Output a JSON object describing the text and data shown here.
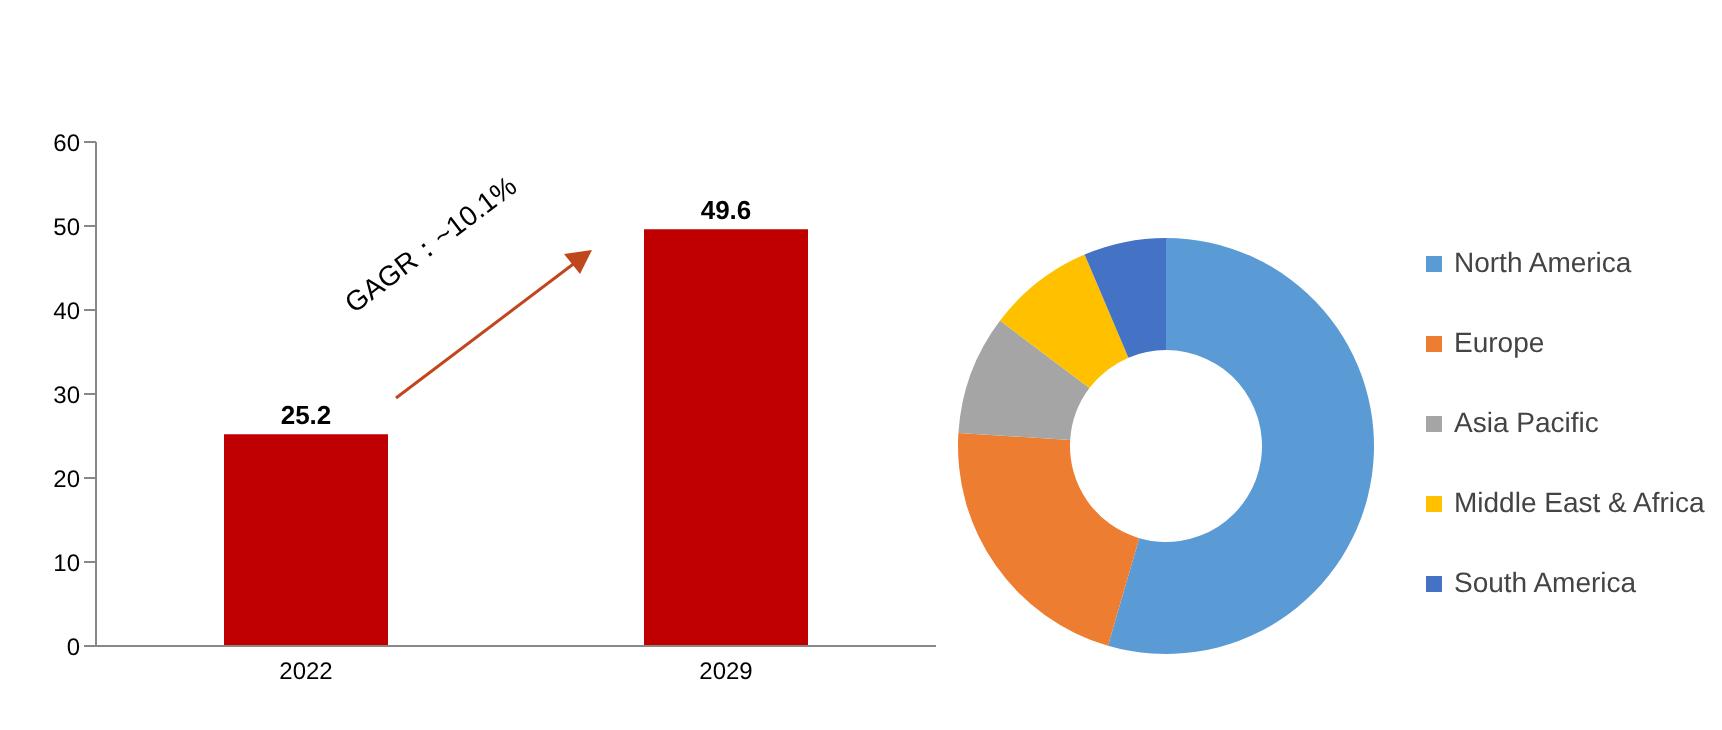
{
  "chart_data": [
    {
      "type": "bar",
      "categories": [
        "2022",
        "2029"
      ],
      "values": [
        25.2,
        49.6
      ],
      "color": "#c00000",
      "ylim": [
        0,
        60
      ],
      "yticks": [
        0,
        10,
        20,
        30,
        40,
        50,
        60
      ],
      "data_labels": true,
      "annotations": [
        "GAGR：~10.1%"
      ]
    },
    {
      "type": "donut",
      "categories": [
        "North America",
        "Europe",
        "Asia Pacific",
        "Middle East & Africa",
        "South America"
      ],
      "values": [
        54.5,
        21.5,
        9.3,
        8.3,
        6.4
      ],
      "colors": [
        "#5b9bd5",
        "#ed7d31",
        "#a5a5a5",
        "#ffc000",
        "#4472c4"
      ],
      "legend": "right"
    }
  ]
}
